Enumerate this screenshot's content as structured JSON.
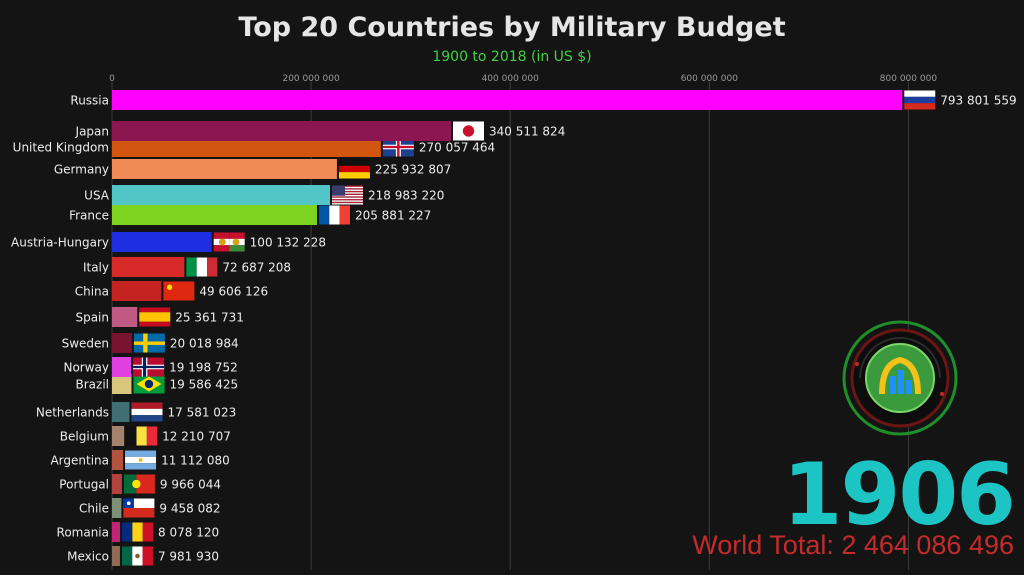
{
  "chart_data": {
    "type": "bar",
    "orientation": "horizontal",
    "title": "Top 20 Countries by Military Budget",
    "subtitle": "1900 to 2018 (in US $)",
    "year": "1906",
    "world_total": "World Total: 2 464 086 496",
    "xlim": [
      0,
      900000000
    ],
    "ticks": [
      0,
      200000000,
      400000000,
      600000000,
      800000000
    ],
    "tick_labels": [
      "0",
      "200 000 000",
      "400 000 000",
      "600 000 000",
      "800 000 000"
    ],
    "categories": [
      "Russia",
      "Japan",
      "United Kingdom",
      "Germany",
      "USA",
      "France",
      "Austria-Hungary",
      "Italy",
      "China",
      "Spain",
      "Sweden",
      "Norway",
      "Brazil",
      "Netherlands",
      "Belgium",
      "Argentina",
      "Portugal",
      "Chile",
      "Romania",
      "Mexico"
    ],
    "values": [
      793801559,
      340511824,
      270057464,
      225932807,
      218983220,
      205881227,
      100132228,
      72687208,
      49606126,
      25361731,
      20018984,
      19198752,
      19586425,
      17581023,
      12210707,
      11112080,
      9966044,
      9458082,
      8078120,
      7981930
    ],
    "value_labels": [
      "793 801 559",
      "340 511 824",
      "270 057 464",
      "225 932 807",
      "218 983 220",
      "205 881 227",
      "100 132 228",
      "72 687 208",
      "49 606 126",
      "25 361 731",
      "20 018 984",
      "19 198 752",
      "19 586 425",
      "17 581 023",
      "12 210 707",
      "11 112 080",
      "9 966 044",
      "9 458 082",
      "8 078 120",
      "7 981 930"
    ],
    "colors": [
      "#ff00ff",
      "#8b1650",
      "#d2560f",
      "#f28a55",
      "#52c6c6",
      "#7ed321",
      "#1f2ee0",
      "#d92a2a",
      "#c52222",
      "#c05a85",
      "#7a1330",
      "#e040e0",
      "#d8c77a",
      "#3f6e73",
      "#a5826b",
      "#b5523f",
      "#b0423f",
      "#7e8f77",
      "#c02575",
      "#8f6b58"
    ],
    "flags": [
      "russia-flag",
      "japan-flag",
      "united-kingdom-flag",
      "germany-flag",
      "usa-flag",
      "france-flag",
      "austria-hungary-flag",
      "italy-flag",
      "china-flag",
      "spain-flag",
      "sweden-flag",
      "norway-flag",
      "brazil-flag",
      "netherlands-flag",
      "belgium-flag",
      "argentina-flag",
      "portugal-flag",
      "chile-flag",
      "romania-flag",
      "mexico-flag"
    ]
  }
}
